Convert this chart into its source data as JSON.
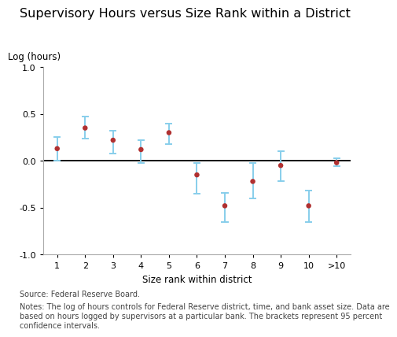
{
  "title": "Supervisory Hours versus Size Rank within a District",
  "ylabel": "Log (hours)",
  "xlabel": "Size rank within district",
  "x_labels": [
    "1",
    "2",
    "3",
    "4",
    "5",
    "6",
    "7",
    "8",
    "9",
    "10",
    ">10"
  ],
  "x_positions": [
    1,
    2,
    3,
    4,
    5,
    6,
    7,
    8,
    9,
    10,
    11
  ],
  "y_values": [
    0.13,
    0.35,
    0.22,
    0.12,
    0.3,
    -0.15,
    -0.48,
    -0.22,
    -0.05,
    -0.48,
    -0.02
  ],
  "ci_top": [
    0.25,
    0.47,
    0.32,
    0.22,
    0.4,
    -0.02,
    -0.34,
    -0.02,
    0.1,
    -0.32,
    0.03
  ],
  "ci_bottom": [
    0.0,
    0.24,
    0.08,
    -0.02,
    0.18,
    -0.35,
    -0.65,
    -0.4,
    -0.22,
    -0.65,
    -0.06
  ],
  "ylim": [
    -1.0,
    1.0
  ],
  "yticks": [
    -1.0,
    -0.5,
    0.0,
    0.5,
    1.0
  ],
  "dot_color": "#b03030",
  "ci_color": "#87ceeb",
  "hline_color": "#000000",
  "source_text": "Source: Federal Reserve Board.",
  "notes_text": "Notes: The log of hours controls for Federal Reserve district, time, and bank asset size. Data are\nbased on hours logged by supervisors at a particular bank. The brackets represent 95 percent\nconfidence intervals.",
  "background_color": "#ffffff",
  "title_fontsize": 11.5,
  "label_fontsize": 8.5,
  "tick_fontsize": 8,
  "note_fontsize": 7
}
